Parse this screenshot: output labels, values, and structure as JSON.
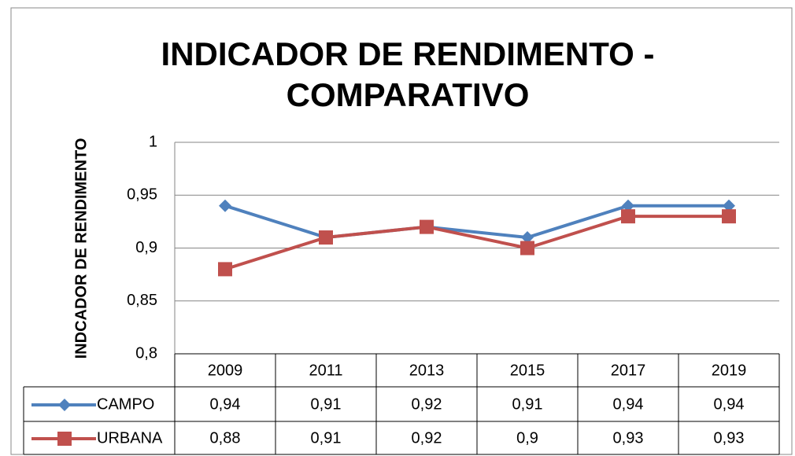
{
  "chart_data": {
    "type": "line",
    "title": "INDICADOR DE RENDIMENTO -\nCOMPARATIVO",
    "title_lines": [
      "INDICADOR DE RENDIMENTO -",
      "COMPARATIVO"
    ],
    "y_label": "INDCADOR DE RENDIMENTO",
    "categories": [
      "2009",
      "2011",
      "2013",
      "2015",
      "2017",
      "2019"
    ],
    "series": [
      {
        "name": "CAMPO",
        "color": "#4f81bd",
        "marker": "diamond",
        "values": [
          0.94,
          0.91,
          0.92,
          0.91,
          0.94,
          0.94
        ],
        "value_labels": [
          "0,94",
          "0,91",
          "0,92",
          "0,91",
          "0,94",
          "0,94"
        ]
      },
      {
        "name": "URBANA",
        "color": "#c0504d",
        "marker": "square",
        "values": [
          0.88,
          0.91,
          0.92,
          0.9,
          0.93,
          0.93
        ],
        "value_labels": [
          "0,88",
          "0,91",
          "0,92",
          "0,9",
          "0,93",
          "0,93"
        ]
      }
    ],
    "ylim": [
      0.8,
      1
    ],
    "yticks": [
      {
        "value": 0.8,
        "label": "0,8"
      },
      {
        "value": 0.85,
        "label": "0,85"
      },
      {
        "value": 0.9,
        "label": "0,9"
      },
      {
        "value": 0.95,
        "label": "0,95"
      },
      1
    ],
    "grid": true,
    "data_table": true
  }
}
